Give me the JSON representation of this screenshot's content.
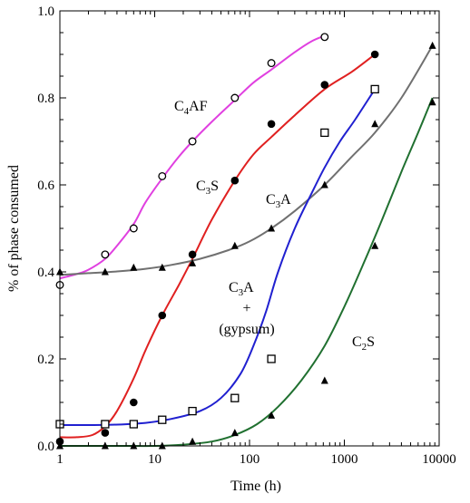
{
  "chart_data": {
    "type": "scatter",
    "title": "",
    "xlabel": "Time (h)",
    "ylabel": "% of phase consumed",
    "x_scale": "log",
    "xlim": [
      1,
      10000
    ],
    "ylim": [
      0.0,
      1.0
    ],
    "x_ticks": [
      1,
      10,
      100,
      1000,
      10000
    ],
    "x_tick_labels": [
      "1",
      "10",
      "100",
      "1000",
      "10000"
    ],
    "y_ticks": [
      0.0,
      0.2,
      0.4,
      0.6,
      0.8,
      1.0
    ],
    "y_tick_labels": [
      "0.0",
      "0.2",
      "0.4",
      "0.6",
      "0.8",
      "1.0"
    ],
    "grid": false,
    "series": [
      {
        "label_main": "C",
        "label_sub": "4",
        "label_tail": "AF",
        "color": "#e040e0",
        "marker": "open-circle",
        "x": [
          1,
          3,
          6,
          12,
          25,
          70,
          170,
          620
        ],
        "y": [
          0.37,
          0.44,
          0.5,
          0.62,
          0.7,
          0.8,
          0.88,
          0.94
        ],
        "fit_x": [
          1,
          1.5,
          2,
          3,
          4,
          6,
          8,
          12,
          18,
          25,
          40,
          70,
          110,
          170,
          300,
          450,
          620
        ],
        "fit_y": [
          0.385,
          0.395,
          0.405,
          0.43,
          0.46,
          0.51,
          0.56,
          0.615,
          0.665,
          0.7,
          0.745,
          0.795,
          0.835,
          0.865,
          0.905,
          0.93,
          0.943
        ]
      },
      {
        "label_main": "C",
        "label_sub": "3",
        "label_tail": "S",
        "color": "#e02020",
        "marker": "filled-circle",
        "x": [
          1,
          3,
          6,
          12,
          25,
          70,
          170,
          620,
          2100
        ],
        "y": [
          0.01,
          0.03,
          0.1,
          0.3,
          0.44,
          0.61,
          0.74,
          0.83,
          0.9
        ],
        "fit_x": [
          1,
          1.5,
          2.2,
          3,
          4,
          6,
          8,
          12,
          18,
          25,
          40,
          70,
          110,
          170,
          300,
          620,
          1200,
          2100
        ],
        "fit_y": [
          0.02,
          0.02,
          0.025,
          0.045,
          0.08,
          0.155,
          0.22,
          0.3,
          0.37,
          0.43,
          0.52,
          0.61,
          0.67,
          0.71,
          0.76,
          0.82,
          0.86,
          0.9
        ]
      },
      {
        "label_main": "C",
        "label_sub": "3",
        "label_tail": "A",
        "color": "#707070",
        "marker": "filled-triangle",
        "x": [
          1,
          3,
          6,
          12,
          25,
          70,
          170,
          620,
          2100,
          8500
        ],
        "y": [
          0.4,
          0.4,
          0.41,
          0.41,
          0.42,
          0.46,
          0.5,
          0.6,
          0.74,
          0.92
        ],
        "fit_x": [
          1,
          2,
          4,
          8,
          15,
          30,
          60,
          100,
          170,
          300,
          620,
          1200,
          2100,
          4000,
          8500
        ],
        "fit_y": [
          0.393,
          0.397,
          0.401,
          0.407,
          0.416,
          0.43,
          0.45,
          0.47,
          0.5,
          0.54,
          0.6,
          0.665,
          0.72,
          0.8,
          0.92
        ]
      },
      {
        "label_main": "C",
        "label_sub": "3",
        "label_tail": "A",
        "label_plus": "+",
        "label_extra": "(gypsum)",
        "color": "#2020d0",
        "marker": "open-square",
        "x": [
          1,
          3,
          6,
          12,
          25,
          70,
          170,
          620,
          2100
        ],
        "y": [
          0.05,
          0.05,
          0.05,
          0.06,
          0.08,
          0.11,
          0.2,
          0.72,
          0.82
        ],
        "fit_x": [
          1,
          2,
          4,
          8,
          15,
          30,
          50,
          80,
          110,
          150,
          200,
          300,
          450,
          620,
          900,
          1300,
          2100
        ],
        "fit_y": [
          0.048,
          0.048,
          0.049,
          0.053,
          0.062,
          0.08,
          0.11,
          0.165,
          0.23,
          0.31,
          0.4,
          0.5,
          0.58,
          0.64,
          0.7,
          0.75,
          0.82
        ]
      },
      {
        "label_main": "C",
        "label_sub": "2",
        "label_tail": "S",
        "color": "#207030",
        "marker": "filled-triangle",
        "x": [
          1,
          3,
          6,
          12,
          25,
          70,
          170,
          620,
          2100,
          8500
        ],
        "y": [
          0.0,
          0.0,
          0.0,
          0.0,
          0.01,
          0.03,
          0.07,
          0.15,
          0.46,
          0.79
        ],
        "fit_x": [
          1,
          4,
          10,
          20,
          40,
          70,
          120,
          200,
          350,
          620,
          1000,
          1600,
          2500,
          4000,
          6000,
          8500
        ],
        "fit_y": [
          0.0,
          0.0,
          0.0,
          0.003,
          0.01,
          0.025,
          0.05,
          0.09,
          0.15,
          0.23,
          0.32,
          0.42,
          0.52,
          0.63,
          0.72,
          0.8
        ]
      }
    ]
  }
}
